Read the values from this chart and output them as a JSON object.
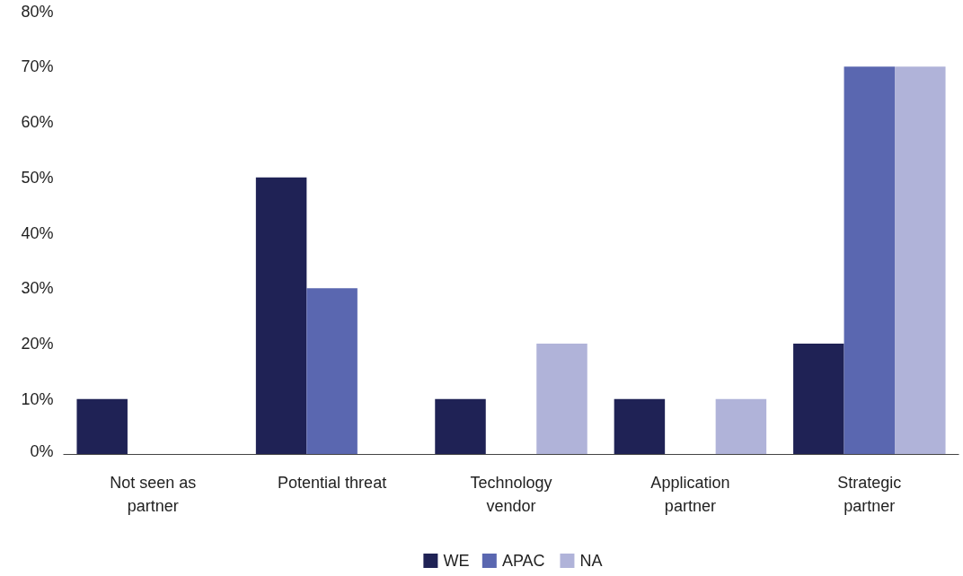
{
  "chart_data": {
    "type": "bar",
    "categories": [
      "Not seen as partner",
      "Potential threat",
      "Technology vendor",
      "Application partner",
      "Strategic partner"
    ],
    "series": [
      {
        "name": "WE",
        "color": "#1f2255",
        "values": [
          10,
          50,
          10,
          10,
          20
        ]
      },
      {
        "name": "APAC",
        "color": "#5a67b0",
        "values": [
          0,
          30,
          0,
          0,
          70
        ]
      },
      {
        "name": "NA",
        "color": "#b0b3d9",
        "values": [
          0,
          0,
          20,
          10,
          70
        ]
      }
    ],
    "ylim": [
      0,
      80
    ],
    "yticks": [
      {
        "value": 0,
        "label": "0%"
      },
      {
        "value": 10,
        "label": "10%"
      },
      {
        "value": 20,
        "label": "20%"
      },
      {
        "value": 30,
        "label": "30%"
      },
      {
        "value": 40,
        "label": "40%"
      },
      {
        "value": 50,
        "label": "50%"
      },
      {
        "value": 60,
        "label": "60%"
      },
      {
        "value": 70,
        "label": "70%"
      },
      {
        "value": 80,
        "label": "80%"
      }
    ],
    "grid": false,
    "legend": "bottom"
  }
}
